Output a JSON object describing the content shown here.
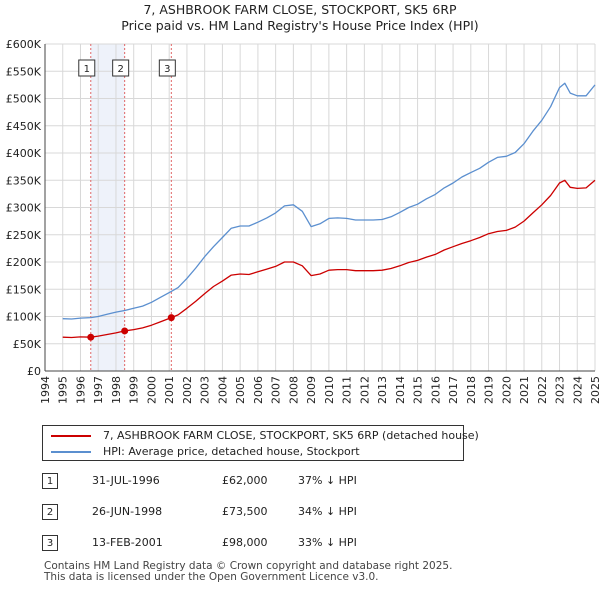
{
  "header": {
    "title_line1": "7, ASHBROOK FARM CLOSE, STOCKPORT, SK5 6RP",
    "title_line2": "Price paid vs. HM Land Registry's House Price Index (HPI)"
  },
  "chart_data": {
    "type": "line",
    "title": "7, ASHBROOK FARM CLOSE, STOCKPORT, SK5 6RP",
    "subtitle": "Price paid vs. HM Land Registry's House Price Index (HPI)",
    "xlabel": "",
    "ylabel": "",
    "xlim": [
      1994,
      2025
    ],
    "ylim": [
      0,
      600000
    ],
    "y_ticks": [
      0,
      50000,
      100000,
      150000,
      200000,
      250000,
      300000,
      350000,
      400000,
      450000,
      500000,
      550000,
      600000
    ],
    "y_tick_labels": [
      "£0",
      "£50K",
      "£100K",
      "£150K",
      "£200K",
      "£250K",
      "£300K",
      "£350K",
      "£400K",
      "£450K",
      "£500K",
      "£550K",
      "£600K"
    ],
    "x_ticks": [
      1994,
      1995,
      1996,
      1997,
      1998,
      1999,
      2000,
      2001,
      2002,
      2003,
      2004,
      2005,
      2006,
      2007,
      2008,
      2009,
      2010,
      2011,
      2012,
      2013,
      2014,
      2015,
      2016,
      2017,
      2018,
      2019,
      2020,
      2021,
      2022,
      2023,
      2024,
      2025
    ],
    "x_tick_labels": [
      "1994",
      "1995",
      "1996",
      "1997",
      "1998",
      "1999",
      "2000",
      "2001",
      "2002",
      "2003",
      "2004",
      "2005",
      "2006",
      "2007",
      "2008",
      "2009",
      "2010",
      "2011",
      "2012",
      "2013",
      "2014",
      "2015",
      "2016",
      "2017",
      "2018",
      "2019",
      "2020",
      "2021",
      "2022",
      "2023",
      "2024",
      "2025"
    ],
    "grid": true,
    "legend_position": "below",
    "colors": {
      "property": "#cc0000",
      "hpi": "#5b8fcf",
      "vline": "#e06666",
      "grid": "#d8d8d8",
      "plot_bg": "#eef2fa"
    },
    "series": [
      {
        "name": "7, ASHBROOK FARM CLOSE, STOCKPORT, SK5 6RP (detached house)",
        "points": [
          [
            1995.0,
            62000
          ],
          [
            1995.5,
            61500
          ],
          [
            1996.0,
            62500
          ],
          [
            1996.58,
            62000
          ],
          [
            1997.0,
            64000
          ],
          [
            1997.5,
            67000
          ],
          [
            1998.0,
            70000
          ],
          [
            1998.49,
            73500
          ],
          [
            1999.0,
            76000
          ],
          [
            1999.5,
            79000
          ],
          [
            2000.0,
            84000
          ],
          [
            2000.5,
            90000
          ],
          [
            2001.12,
            98000
          ],
          [
            2001.5,
            103000
          ],
          [
            2002.0,
            115000
          ],
          [
            2002.5,
            128000
          ],
          [
            2003.0,
            142000
          ],
          [
            2003.5,
            155000
          ],
          [
            2004.0,
            165000
          ],
          [
            2004.5,
            176000
          ],
          [
            2005.0,
            178000
          ],
          [
            2005.5,
            177000
          ],
          [
            2006.0,
            182000
          ],
          [
            2006.5,
            187000
          ],
          [
            2007.0,
            192000
          ],
          [
            2007.5,
            200000
          ],
          [
            2008.0,
            200000
          ],
          [
            2008.5,
            193000
          ],
          [
            2009.0,
            175000
          ],
          [
            2009.5,
            178000
          ],
          [
            2010.0,
            185000
          ],
          [
            2010.5,
            186000
          ],
          [
            2011.0,
            186000
          ],
          [
            2011.5,
            184000
          ],
          [
            2012.0,
            184000
          ],
          [
            2012.5,
            184000
          ],
          [
            2013.0,
            185000
          ],
          [
            2013.5,
            188000
          ],
          [
            2014.0,
            193000
          ],
          [
            2014.5,
            199000
          ],
          [
            2015.0,
            203000
          ],
          [
            2015.5,
            209000
          ],
          [
            2016.0,
            214000
          ],
          [
            2016.5,
            222000
          ],
          [
            2017.0,
            228000
          ],
          [
            2017.5,
            234000
          ],
          [
            2018.0,
            239000
          ],
          [
            2018.5,
            245000
          ],
          [
            2019.0,
            252000
          ],
          [
            2019.5,
            256000
          ],
          [
            2020.0,
            258000
          ],
          [
            2020.5,
            264000
          ],
          [
            2021.0,
            275000
          ],
          [
            2021.5,
            290000
          ],
          [
            2022.0,
            305000
          ],
          [
            2022.5,
            322000
          ],
          [
            2023.0,
            345000
          ],
          [
            2023.3,
            350000
          ],
          [
            2023.6,
            337000
          ],
          [
            2024.0,
            335000
          ],
          [
            2024.5,
            336000
          ],
          [
            2025.0,
            350000
          ]
        ]
      },
      {
        "name": "HPI: Average price, detached house, Stockport",
        "points": [
          [
            1995.0,
            96000
          ],
          [
            1995.5,
            95500
          ],
          [
            1996.0,
            97000
          ],
          [
            1996.58,
            98000
          ],
          [
            1997.0,
            100000
          ],
          [
            1997.5,
            104000
          ],
          [
            1998.0,
            108000
          ],
          [
            1998.49,
            111000
          ],
          [
            1999.0,
            115000
          ],
          [
            1999.5,
            119000
          ],
          [
            2000.0,
            126000
          ],
          [
            2000.5,
            135000
          ],
          [
            2001.12,
            146000
          ],
          [
            2001.5,
            153000
          ],
          [
            2002.0,
            170000
          ],
          [
            2002.5,
            189000
          ],
          [
            2003.0,
            210000
          ],
          [
            2003.5,
            228000
          ],
          [
            2004.0,
            245000
          ],
          [
            2004.5,
            262000
          ],
          [
            2005.0,
            266000
          ],
          [
            2005.5,
            266000
          ],
          [
            2006.0,
            273000
          ],
          [
            2006.5,
            281000
          ],
          [
            2007.0,
            290000
          ],
          [
            2007.5,
            303000
          ],
          [
            2008.0,
            305000
          ],
          [
            2008.5,
            293000
          ],
          [
            2009.0,
            265000
          ],
          [
            2009.5,
            270000
          ],
          [
            2010.0,
            280000
          ],
          [
            2010.5,
            281000
          ],
          [
            2011.0,
            280000
          ],
          [
            2011.5,
            277000
          ],
          [
            2012.0,
            277000
          ],
          [
            2012.5,
            277000
          ],
          [
            2013.0,
            278000
          ],
          [
            2013.5,
            283000
          ],
          [
            2014.0,
            291000
          ],
          [
            2014.5,
            300000
          ],
          [
            2015.0,
            306000
          ],
          [
            2015.5,
            316000
          ],
          [
            2016.0,
            324000
          ],
          [
            2016.5,
            336000
          ],
          [
            2017.0,
            345000
          ],
          [
            2017.5,
            356000
          ],
          [
            2018.0,
            364000
          ],
          [
            2018.5,
            372000
          ],
          [
            2019.0,
            383000
          ],
          [
            2019.5,
            392000
          ],
          [
            2020.0,
            394000
          ],
          [
            2020.5,
            401000
          ],
          [
            2021.0,
            417000
          ],
          [
            2021.5,
            440000
          ],
          [
            2022.0,
            460000
          ],
          [
            2022.5,
            485000
          ],
          [
            2023.0,
            520000
          ],
          [
            2023.3,
            528000
          ],
          [
            2023.6,
            510000
          ],
          [
            2024.0,
            505000
          ],
          [
            2024.5,
            505000
          ],
          [
            2025.0,
            525000
          ]
        ]
      }
    ],
    "sales": [
      {
        "label": "1",
        "x": 1996.58,
        "price": 62000
      },
      {
        "label": "2",
        "x": 1998.49,
        "price": 73500
      },
      {
        "label": "3",
        "x": 2001.12,
        "price": 98000
      }
    ]
  },
  "legend": {
    "property_label": "7, ASHBROOK FARM CLOSE, STOCKPORT, SK5 6RP (detached house)",
    "hpi_label": "HPI: Average price, detached house, Stockport"
  },
  "sales_table": {
    "rows": [
      {
        "num": "1",
        "date": "31-JUL-1996",
        "price": "£62,000",
        "delta": "37% ↓ HPI"
      },
      {
        "num": "2",
        "date": "26-JUN-1998",
        "price": "£73,500",
        "delta": "34% ↓ HPI"
      },
      {
        "num": "3",
        "date": "13-FEB-2001",
        "price": "£98,000",
        "delta": "33% ↓ HPI"
      }
    ]
  },
  "footer": {
    "line1": "Contains HM Land Registry data © Crown copyright and database right 2025.",
    "line2": "This data is licensed under the Open Government Licence v3.0."
  }
}
